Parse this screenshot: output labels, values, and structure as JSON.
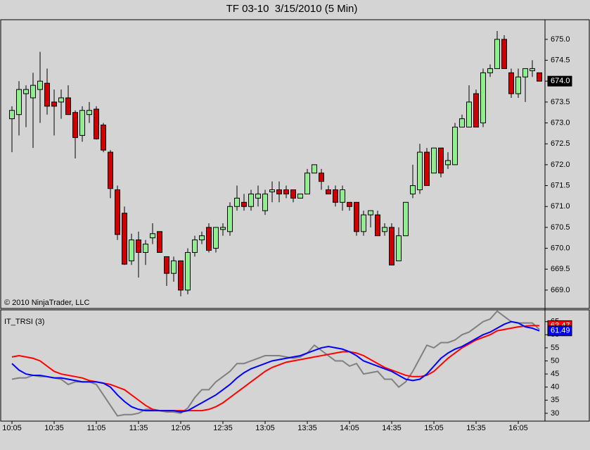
{
  "chart_data": [
    {
      "type": "candlestick",
      "title": "TF 03-10  3/15/2010 (5 Min)",
      "annotation": "© 2010 NinjaTrader, LLC",
      "up_color": "#90ee90",
      "down_color": "#cc0000",
      "open": [
        673.1,
        673.2,
        673.7,
        673.6,
        673.8,
        673.95,
        673.5,
        673.5,
        673.6,
        673.25,
        672.7,
        673.2,
        673.33,
        672.95,
        672.3,
        671.4,
        670.84,
        669.7,
        670.2,
        669.9,
        670.25,
        670.4,
        669.8,
        669.4,
        669.7,
        669.0,
        669.9,
        670.2,
        670.5,
        670.0,
        670.45,
        670.4,
        671.0,
        671.1,
        671.0,
        671.2,
        670.9,
        671.35,
        671.4,
        671.4,
        671.4,
        671.2,
        671.3,
        671.8,
        671.8,
        671.4,
        671.4,
        671.1,
        671.1,
        671.1,
        670.4,
        670.8,
        670.8,
        670.4,
        670.5,
        669.7,
        670.3,
        671.3,
        671.4,
        672.3,
        671.8,
        672.4,
        672.0,
        672.0,
        672.9,
        672.9,
        673.7,
        673.0,
        674.2,
        674.3,
        675.0,
        674.2,
        673.7,
        674.1,
        674.25,
        674.2
      ],
      "high": [
        673.4,
        674.0,
        673.9,
        674.2,
        674.7,
        674.3,
        673.8,
        673.8,
        673.9,
        673.3,
        673.4,
        673.5,
        673.4,
        673.0,
        672.35,
        671.5,
        671.0,
        670.35,
        670.4,
        670.2,
        670.6,
        670.4,
        669.8,
        669.8,
        669.7,
        670.0,
        670.3,
        670.4,
        670.6,
        670.5,
        670.6,
        671.1,
        671.5,
        671.3,
        671.4,
        671.5,
        671.4,
        671.6,
        671.6,
        671.5,
        671.4,
        671.3,
        671.9,
        672.0,
        671.9,
        671.5,
        671.5,
        671.5,
        671.1,
        671.1,
        670.9,
        670.9,
        670.9,
        670.6,
        670.6,
        670.5,
        671.1,
        672.0,
        672.5,
        672.4,
        672.4,
        672.4,
        672.3,
        673.0,
        673.2,
        673.9,
        673.8,
        674.3,
        674.4,
        675.2,
        675.1,
        674.3,
        674.3,
        674.3,
        674.5,
        674.2
      ],
      "low": [
        672.3,
        672.7,
        672.9,
        672.4,
        673.0,
        673.2,
        672.7,
        673.1,
        673.2,
        672.15,
        672.55,
        673.0,
        672.6,
        672.3,
        671.2,
        670.2,
        669.6,
        669.6,
        669.3,
        669.6,
        670.1,
        669.9,
        669.1,
        669.2,
        668.85,
        668.9,
        669.8,
        670.1,
        669.9,
        669.9,
        670.3,
        670.3,
        670.9,
        670.9,
        670.9,
        671.0,
        670.8,
        671.1,
        671.1,
        671.2,
        671.1,
        671.2,
        671.3,
        671.8,
        671.4,
        671.3,
        671.0,
        670.9,
        670.9,
        670.3,
        670.3,
        670.5,
        670.3,
        670.3,
        669.6,
        669.7,
        670.3,
        671.2,
        671.3,
        671.5,
        671.8,
        671.7,
        671.9,
        672.0,
        672.9,
        672.9,
        672.9,
        672.9,
        674.1,
        674.3,
        674.3,
        673.6,
        673.6,
        673.5,
        674.1,
        674.0
      ],
      "close": [
        673.3,
        673.8,
        673.8,
        673.9,
        674.0,
        673.4,
        673.4,
        673.6,
        673.2,
        672.65,
        673.3,
        673.3,
        672.62,
        672.35,
        671.43,
        670.33,
        669.62,
        670.2,
        669.9,
        670.1,
        670.35,
        669.9,
        669.4,
        669.7,
        669.0,
        669.9,
        670.2,
        670.3,
        669.95,
        670.5,
        670.5,
        671.0,
        671.2,
        671.0,
        671.3,
        671.3,
        671.3,
        671.4,
        671.3,
        671.3,
        671.2,
        671.3,
        671.8,
        672.0,
        671.6,
        671.3,
        671.1,
        671.4,
        671.0,
        670.4,
        670.8,
        670.9,
        670.3,
        670.5,
        669.6,
        670.3,
        671.1,
        671.5,
        672.3,
        671.5,
        672.4,
        671.8,
        672.1,
        672.9,
        673.1,
        673.5,
        672.9,
        674.2,
        674.3,
        675.0,
        674.3,
        673.7,
        674.1,
        674.3,
        674.3,
        674.0
      ],
      "last_label": "674.0",
      "ylim": [
        668.56,
        675.47
      ],
      "yticks": [
        {
          "value": 669.0,
          "label": "669.0"
        },
        669.5,
        {
          "value": 670.0,
          "label": "670.0"
        },
        670.5,
        {
          "value": 671.0,
          "label": "671.0"
        },
        671.5,
        {
          "value": 672.0,
          "label": "672.0"
        },
        672.5,
        {
          "value": 673.0,
          "label": "673.0"
        },
        673.5,
        {
          "value": 674.0,
          "label": "674.0"
        },
        674.5,
        {
          "value": 675.0,
          "label": "675.0"
        }
      ]
    },
    {
      "type": "line",
      "title": "IT_TRSI (3)",
      "categories": [
        "10:05",
        null,
        null,
        null,
        null,
        null,
        "10:35",
        null,
        null,
        null,
        null,
        null,
        "11:05",
        null,
        null,
        null,
        null,
        null,
        "11:35",
        null,
        null,
        null,
        null,
        null,
        "12:05",
        null,
        null,
        null,
        null,
        null,
        "12:35",
        null,
        null,
        null,
        null,
        null,
        "13:05",
        null,
        null,
        null,
        null,
        null,
        "13:35",
        null,
        null,
        null,
        null,
        null,
        "14:05",
        null,
        null,
        null,
        null,
        null,
        "14:35",
        null,
        null,
        null,
        null,
        null,
        "15:05",
        null,
        null,
        null,
        null,
        null,
        "15:35",
        null,
        null,
        null,
        null,
        null,
        "16:05",
        null,
        null,
        null
      ],
      "series": [
        {
          "color": "#808080",
          "values": [
            43,
            43.5,
            43.5,
            44.5,
            44,
            44,
            43.5,
            43,
            41,
            42,
            42,
            42,
            41,
            37,
            33,
            29,
            29.5,
            29.5,
            30,
            31.5,
            31.5,
            31,
            30.5,
            30.5,
            30,
            32,
            36,
            39,
            39,
            42,
            44,
            46,
            49,
            49,
            50,
            51,
            52,
            52,
            52,
            51.5,
            51,
            51.5,
            53,
            56,
            54,
            52,
            50,
            50,
            48,
            49,
            45,
            45.5,
            46,
            43,
            43,
            40,
            42,
            46,
            51,
            56,
            55,
            57,
            57,
            58,
            60,
            61,
            63,
            65,
            66,
            69,
            67,
            65,
            64.5,
            64.5,
            64.5,
            62
          ]
        },
        {
          "color": "#ff0000",
          "last_label": "63.47",
          "values": [
            51.5,
            52,
            51.5,
            51,
            50,
            48,
            46,
            45,
            44.5,
            44,
            43.5,
            42.5,
            42,
            41.5,
            41,
            40,
            39,
            37,
            35,
            33,
            31.5,
            31,
            31,
            31,
            31,
            31,
            31,
            31,
            31.5,
            32.5,
            34,
            36,
            38,
            40,
            42,
            44,
            46,
            47.5,
            48.5,
            49.5,
            50,
            50.5,
            51,
            51.5,
            52,
            52.5,
            53,
            53.5,
            53.5,
            53,
            52,
            50.5,
            49,
            47.5,
            46.5,
            45.5,
            44.5,
            44,
            44,
            44.5,
            46,
            48.5,
            51,
            53,
            55,
            56.5,
            58,
            59,
            60,
            61.5,
            62,
            62.5,
            63,
            63.3,
            63.5,
            63.47
          ]
        },
        {
          "color": "#0000ff",
          "last_label": "61.49",
          "values": [
            49,
            46.5,
            45,
            44.5,
            44.5,
            44,
            43.5,
            43.5,
            43,
            42.5,
            42,
            42,
            42,
            41.5,
            40,
            37,
            34.5,
            32.5,
            31.5,
            31,
            31,
            31,
            31,
            31,
            30.5,
            31,
            32.5,
            34,
            35.5,
            37,
            39,
            41,
            43.5,
            45.5,
            47,
            48,
            49,
            50,
            50.5,
            51,
            51.5,
            52,
            53,
            54,
            55,
            55.5,
            55,
            54.5,
            53.5,
            52,
            50,
            49,
            48,
            47,
            46,
            44.5,
            43,
            42.5,
            43,
            45,
            48,
            51,
            53,
            54.5,
            55.5,
            57,
            58.5,
            60,
            61,
            62.5,
            64,
            65,
            64.5,
            63,
            62.5,
            61.49
          ]
        }
      ],
      "ylim": [
        27,
        69.5
      ],
      "yticks": [
        30,
        35,
        40,
        45,
        50,
        55,
        60,
        65
      ]
    }
  ]
}
